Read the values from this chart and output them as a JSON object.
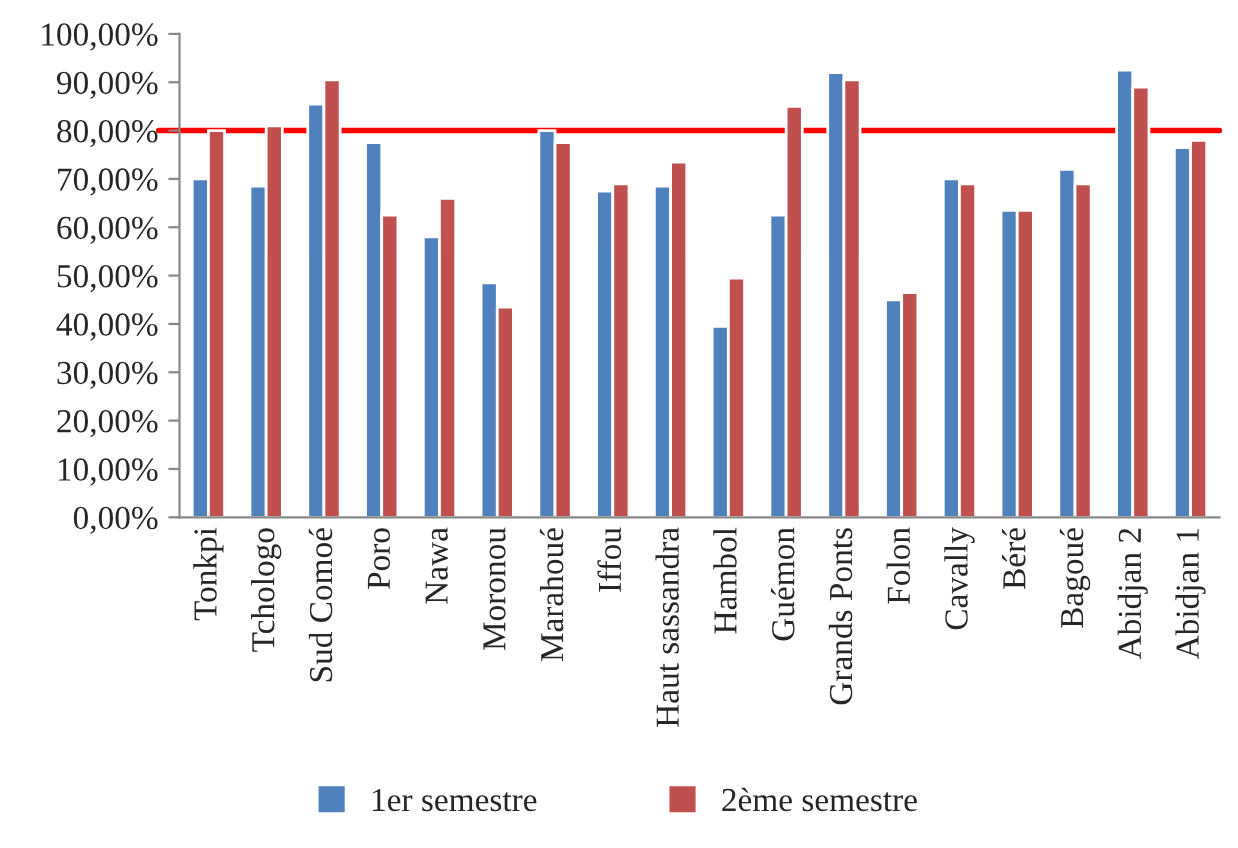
{
  "chart_data": {
    "type": "bar",
    "categories": [
      "Tonkpi",
      "Tchologo",
      "Sud Comoé",
      "Poro",
      "Nawa",
      "Moronou",
      "Marahoué",
      "Iffou",
      "Haut sassandra",
      "Hambol",
      "Guémon",
      "Grands Ponts",
      "Folon",
      "Cavally",
      "Béré",
      "Bagoué",
      "Abidjan 2",
      "Abidjan 1"
    ],
    "series": [
      {
        "name": "1er semestre",
        "color": "#4f81bd",
        "values": [
          70,
          68.5,
          85.5,
          77.5,
          58,
          48.5,
          80,
          67.5,
          68.5,
          39.5,
          62.5,
          92,
          45,
          70,
          63.5,
          72,
          92.5,
          76.5
        ]
      },
      {
        "name": "2ème semestre",
        "color": "#c0504d",
        "values": [
          80,
          81,
          90.5,
          62.5,
          66,
          43.5,
          77.5,
          69,
          73.5,
          49.5,
          85,
          90.5,
          46.5,
          69,
          63.5,
          69,
          89,
          78
        ]
      }
    ],
    "ylim": [
      0,
      100
    ],
    "yticks": [
      {
        "value": 0,
        "label": "0,00%"
      },
      {
        "value": 10,
        "label": "10,00%"
      },
      {
        "value": 20,
        "label": "20,00%"
      },
      {
        "value": 30,
        "label": "30,00%"
      },
      {
        "value": 40,
        "label": "40,00%"
      },
      {
        "value": 50,
        "label": "50,00%"
      },
      {
        "value": 60,
        "label": "60,00%"
      },
      {
        "value": 70,
        "label": "70,00%"
      },
      {
        "value": 80,
        "label": "80,00%"
      },
      {
        "value": 90,
        "label": "90,00%"
      },
      {
        "value": 100,
        "label": "100,00%"
      }
    ],
    "ref_lines": [
      {
        "axis": "y",
        "value": 80,
        "color": "#ff0000"
      }
    ],
    "grid": false,
    "legend": "bottom"
  }
}
